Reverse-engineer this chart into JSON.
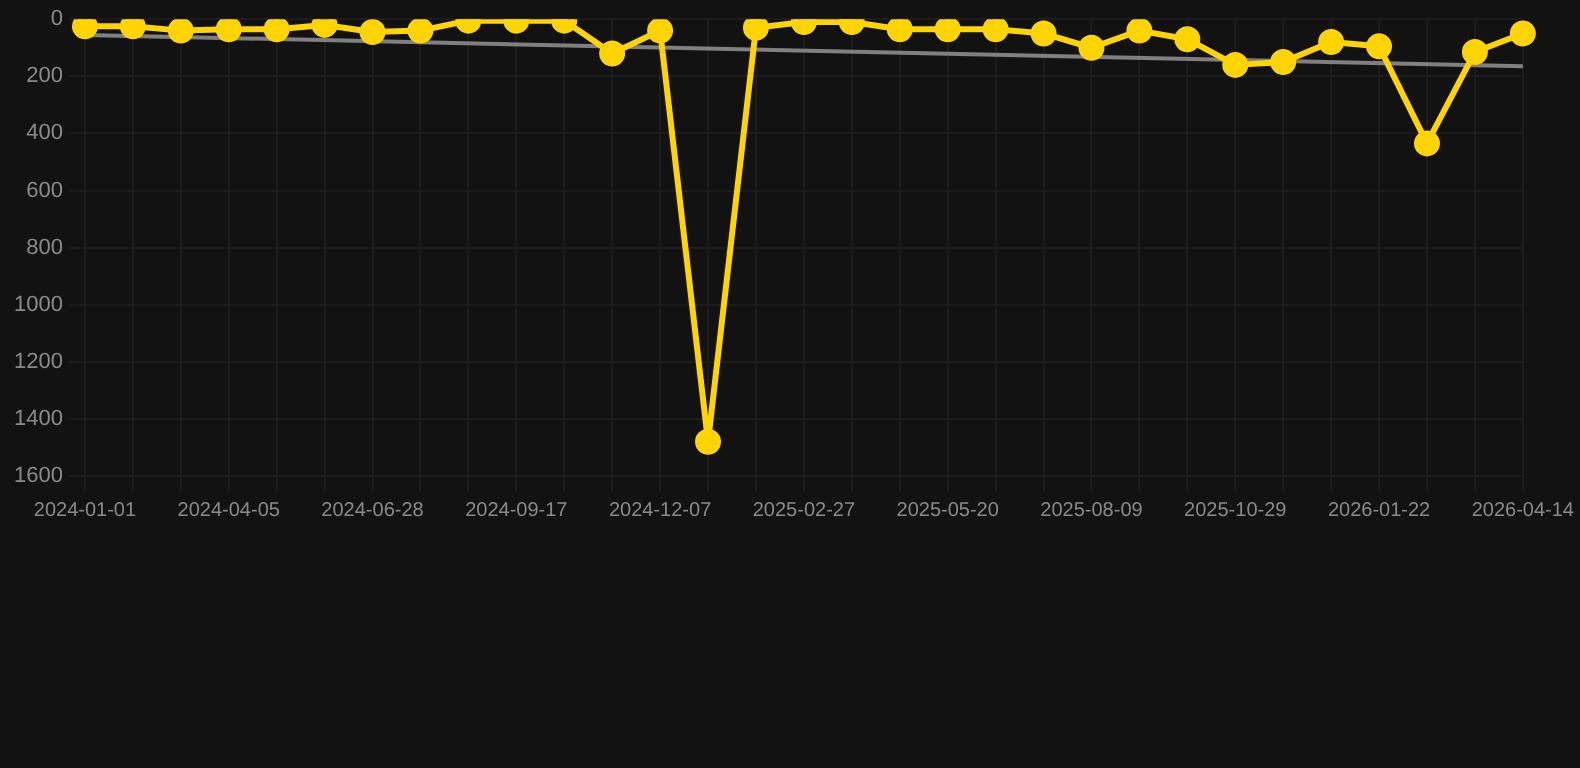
{
  "chart_data": {
    "type": "line",
    "categories": [
      "2024-01-01",
      null,
      null,
      "2024-04-05",
      null,
      null,
      "2024-06-28",
      null,
      null,
      "2024-09-17",
      null,
      null,
      "2024-12-07",
      null,
      null,
      "2025-02-27",
      null,
      null,
      "2025-05-20",
      null,
      null,
      "2025-08-09",
      null,
      null,
      "2025-10-29",
      null,
      null,
      "2026-01-22",
      null,
      null,
      "2026-04-14"
    ],
    "series": [
      {
        "color": "#ffd400",
        "marker": "circle",
        "values": [
          25,
          25,
          40,
          35,
          35,
          20,
          45,
          40,
          5,
          5,
          5,
          120,
          40,
          1480,
          30,
          10,
          10,
          35,
          35,
          35,
          50,
          100,
          40,
          70,
          160,
          150,
          80,
          95,
          435,
          115,
          50
        ]
      },
      {
        "type": "line",
        "color": "#808080",
        "marker": "none",
        "values": [
          55,
          null,
          null,
          null,
          null,
          null,
          null,
          null,
          null,
          null,
          null,
          null,
          null,
          null,
          null,
          null,
          null,
          null,
          null,
          null,
          null,
          null,
          null,
          null,
          null,
          null,
          null,
          null,
          null,
          null,
          165
        ]
      }
    ],
    "ylim": [
      1600,
      0
    ],
    "yticks": [
      0,
      200,
      400,
      600,
      800,
      1000,
      1200,
      1400,
      1600
    ],
    "grid": true,
    "legend": false
  }
}
